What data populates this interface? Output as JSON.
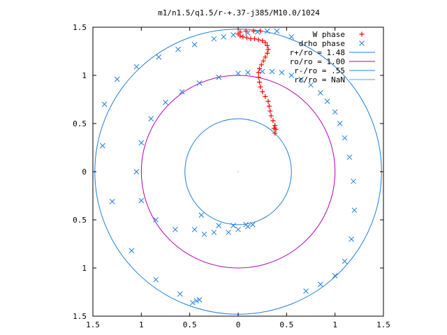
{
  "chart_data": {
    "type": "scatter",
    "title": "m1/n1.5/q1.5/r-+.37-j385/M10.0/1024",
    "xlim": [
      -1.5,
      1.5
    ],
    "ylim": [
      -1.5,
      1.5
    ],
    "grid": false,
    "legend_position": "top-right",
    "xticks": [
      -1.5,
      -1,
      -0.5,
      0,
      0.5,
      1,
      1.5
    ],
    "xtick_labels": [
      "1.5",
      "1",
      "0.5",
      "0",
      "0.5",
      "1",
      "1.5"
    ],
    "yticks": [
      1.5,
      1,
      0.5,
      0,
      -0.5,
      -1,
      -1.5
    ],
    "ytick_labels": [
      "1.5",
      "1",
      "0.5",
      "0",
      "0.5",
      "1",
      "1.5"
    ],
    "series": [
      {
        "name": "W phase",
        "marker": "plus",
        "color": "#ff0000",
        "x": [
          0.37,
          0.38,
          0.39,
          0.38,
          0.36,
          0.34,
          0.33,
          0.32,
          0.31,
          0.28,
          0.25,
          0.23,
          0.22,
          0.21,
          0.21,
          0.22,
          0.24,
          0.26,
          0.28,
          0.3,
          0.31,
          0.3,
          0.28,
          0.25,
          0.21,
          0.17,
          0.13,
          0.09,
          0.05,
          0.02,
          0.0,
          0.02,
          0.08,
          0.16,
          0.23
        ],
        "y": [
          0.45,
          0.4,
          0.44,
          0.48,
          0.53,
          0.58,
          0.63,
          0.68,
          0.73,
          0.78,
          0.83,
          0.88,
          0.93,
          0.98,
          1.03,
          1.07,
          1.11,
          1.15,
          1.19,
          1.23,
          1.27,
          1.31,
          1.34,
          1.36,
          1.37,
          1.38,
          1.38,
          1.39,
          1.4,
          1.41,
          1.43,
          1.45,
          1.46,
          1.46,
          1.46
        ]
      },
      {
        "name": "drho phase",
        "marker": "cross",
        "color": "#1f7fd8",
        "x": [
          -0.4,
          -0.43,
          -0.47,
          -0.6,
          -0.85,
          -1.1,
          -1.3,
          -1.4,
          -1.38,
          -1.25,
          -1.05,
          -0.82,
          -0.62,
          -0.45,
          -0.25,
          -0.15,
          -0.05,
          0.1,
          0.2,
          0.3,
          0.4,
          0.55,
          0.7,
          0.85,
          1.0,
          1.1,
          1.17,
          1.2,
          1.19,
          1.15,
          1.1,
          1.05,
          1.0,
          0.92,
          0.85,
          0.75,
          0.65,
          0.55,
          0.45,
          0.35,
          0.25,
          0.1,
          0.0,
          -0.2,
          -0.4,
          -0.58,
          -0.75,
          -0.9,
          -1.0,
          -1.05,
          -1.0,
          -0.85,
          -0.65,
          -0.45,
          -0.35,
          -0.25,
          -0.1,
          0.0,
          0.1,
          0.15,
          0.08,
          -0.05,
          -0.2,
          -0.38
        ],
        "y": [
          -1.33,
          -1.34,
          -1.36,
          -1.27,
          -1.12,
          -0.82,
          -0.31,
          0.27,
          0.7,
          0.96,
          1.09,
          1.19,
          1.27,
          1.32,
          1.38,
          1.4,
          1.42,
          1.44,
          1.45,
          1.46,
          1.46,
          1.4,
          -1.24,
          -1.17,
          -1.08,
          -0.93,
          -0.7,
          -0.4,
          -0.1,
          0.15,
          0.35,
          0.5,
          0.62,
          0.73,
          0.82,
          0.9,
          0.96,
          1.0,
          1.03,
          1.04,
          1.04,
          1.03,
          1.02,
          0.98,
          0.92,
          0.83,
          0.72,
          0.55,
          0.3,
          0.0,
          -0.3,
          -0.5,
          -0.6,
          -0.6,
          -0.65,
          -0.63,
          -0.63,
          -0.6,
          -0.57,
          -0.55,
          -0.55,
          -0.56,
          -0.56,
          -0.45
        ]
      },
      {
        "name": "r+/ro = 1.48",
        "type": "circle",
        "radius": 1.48,
        "color": "#1f7fd8"
      },
      {
        "name": "ro/ro = 1.00",
        "type": "circle",
        "radius": 1.0,
        "color": "#b000b0"
      },
      {
        "name": "r-/ro = .55",
        "type": "circle",
        "radius": 0.55,
        "color": "#1f7fd8"
      },
      {
        "name": "rc/ro = NaN",
        "type": "circle",
        "radius": null,
        "color": "#29b6e8"
      }
    ]
  }
}
